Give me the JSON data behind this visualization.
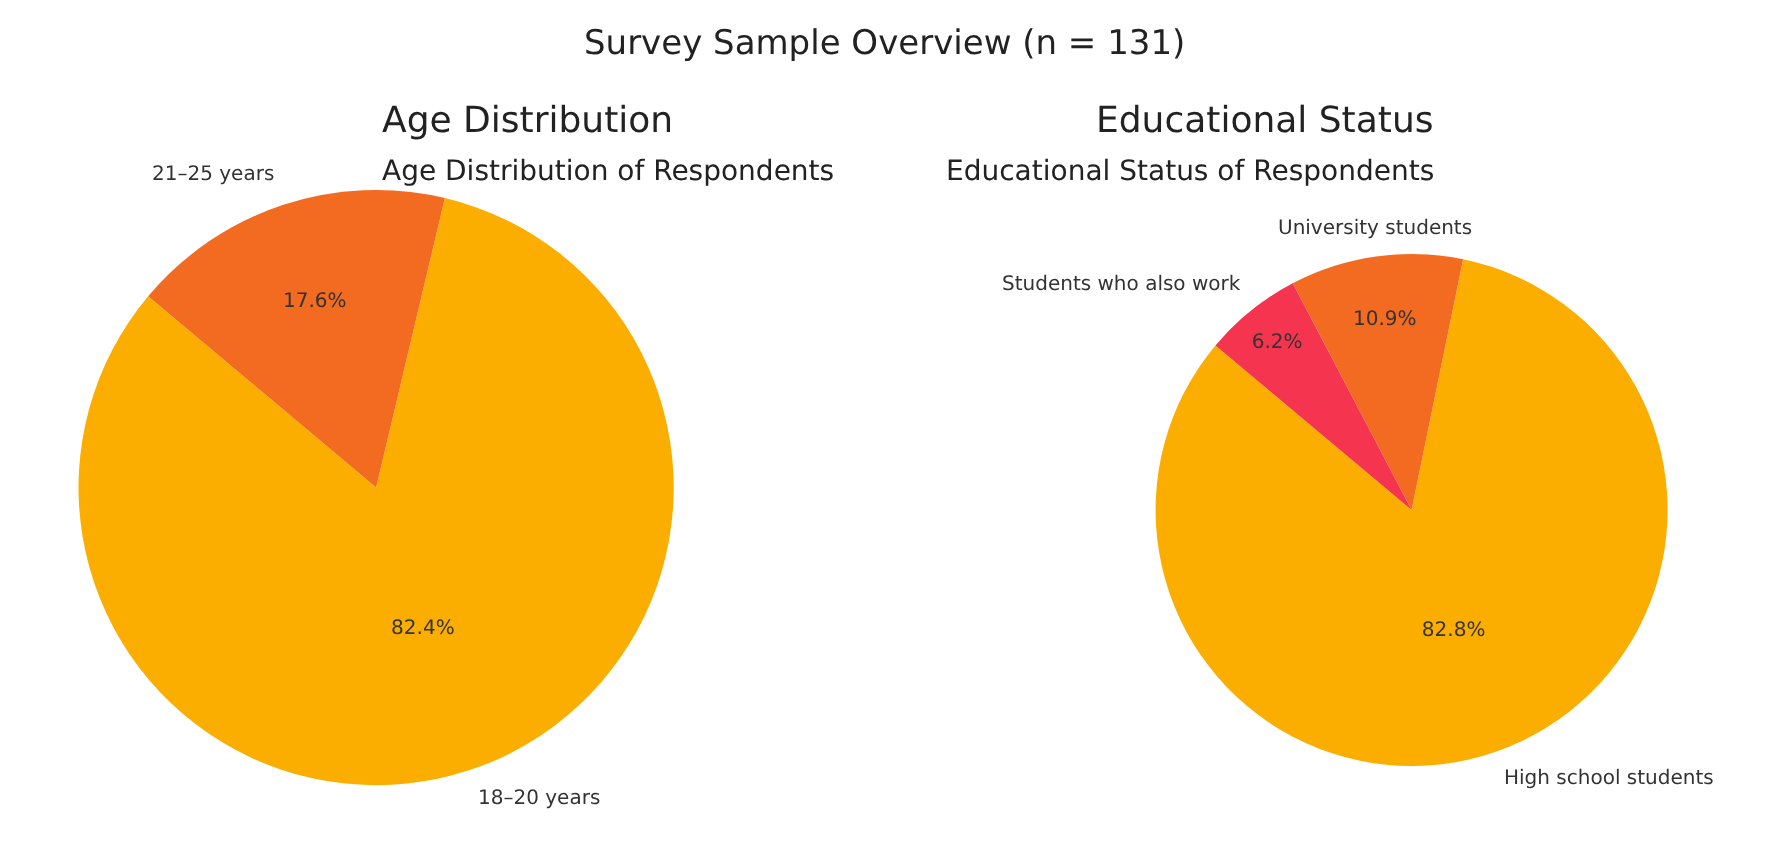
{
  "chart_data": [
    {
      "type": "pie",
      "title": "Age Distribution",
      "subtitle": "Age Distribution of Respondents",
      "annotations": [
        "Survey Sample Overview (n = 131)"
      ],
      "categories": [
        "18–20 years",
        "21–25 years"
      ],
      "values": [
        82.4,
        17.6
      ],
      "value_labels": [
        "82.4%",
        "17.6%"
      ],
      "colors": [
        "#fcae00",
        "#f26b21"
      ]
    },
    {
      "type": "pie",
      "title": "Educational Status",
      "subtitle": "Educational Status of Respondents",
      "categories": [
        "High school students",
        "University students",
        "Students who also work"
      ],
      "values": [
        82.8,
        10.9,
        6.2
      ],
      "value_labels": [
        "82.8%",
        "10.9%",
        "6.2%"
      ],
      "colors": [
        "#fcae00",
        "#f26b21",
        "#f5344f"
      ]
    }
  ]
}
